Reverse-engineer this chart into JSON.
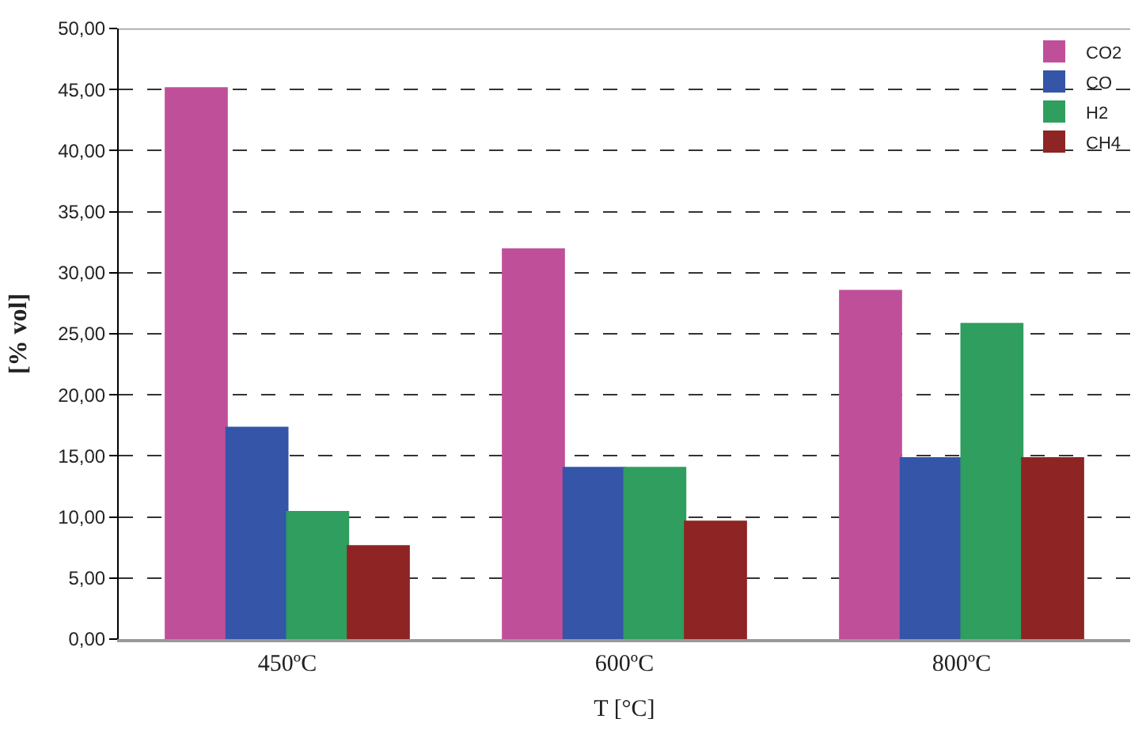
{
  "chart_data": {
    "type": "bar",
    "xlabel": "T [°C]",
    "ylabel": "[% vol]",
    "categories": [
      "450ºC",
      "600ºC",
      "800ºC"
    ],
    "series": [
      {
        "name": "CO2",
        "color": "#c04f9a",
        "values": [
          45.1,
          31.9,
          28.5
        ]
      },
      {
        "name": "CO",
        "color": "#3455a8",
        "values": [
          17.3,
          14.0,
          14.8
        ]
      },
      {
        "name": "H2",
        "color": "#2f9e5e",
        "values": [
          10.4,
          14.0,
          25.8
        ]
      },
      {
        "name": "CH4",
        "color": "#8e2424",
        "values": [
          7.6,
          9.6,
          14.8
        ]
      }
    ],
    "ylim": [
      0,
      50
    ],
    "yticks": [
      {
        "value": 0,
        "label": "0,00"
      },
      {
        "value": 5,
        "label": "5,00"
      },
      {
        "value": 10,
        "label": "10,00"
      },
      {
        "value": 15,
        "label": "15,00"
      },
      {
        "value": 20,
        "label": "20,00"
      },
      {
        "value": 25,
        "label": "25,00"
      },
      {
        "value": 30,
        "label": "30,00"
      },
      {
        "value": 35,
        "label": "35,00"
      },
      {
        "value": 40,
        "label": "40,00"
      },
      {
        "value": 45,
        "label": "45,00"
      },
      {
        "value": 50,
        "label": "50,00"
      }
    ],
    "grid": "y",
    "legend": "top right"
  }
}
